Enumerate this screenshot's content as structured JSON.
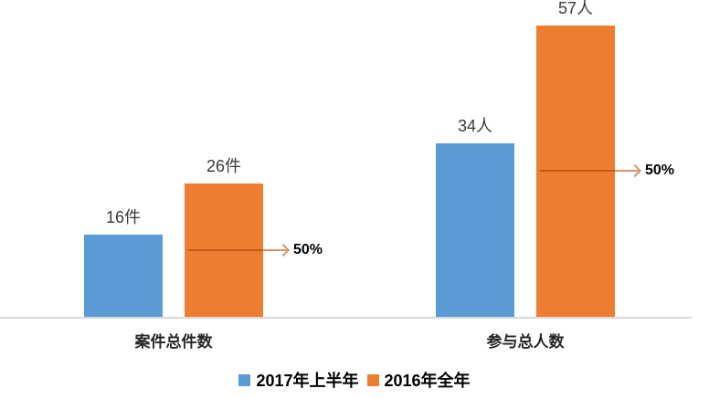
{
  "chart_data": {
    "type": "bar",
    "title": "",
    "xlabel": "",
    "ylabel": "",
    "categories": [
      "案件总件数",
      "参与总人数"
    ],
    "series": [
      {
        "name": "2017年上半年",
        "color": "#5B9BD5",
        "values": [
          16,
          34
        ],
        "data_labels": [
          "16件",
          "34人"
        ]
      },
      {
        "name": "2016年全年",
        "color": "#ED7D31",
        "values": [
          26,
          57
        ],
        "data_labels": [
          "26件",
          "57人"
        ]
      }
    ],
    "ylim": [
      0,
      62
    ],
    "grid": false,
    "y_axis_visible": false,
    "legend_position": "bottom",
    "annotations": [
      {
        "category": "案件总件数",
        "series": "2016年全年",
        "at_fraction_of_bar": 0.5,
        "label": "50%"
      },
      {
        "category": "参与总人数",
        "series": "2016年全年",
        "at_fraction_of_bar": 0.5,
        "label": "50%"
      }
    ]
  },
  "colors": {
    "axis_line": "#D9D9D9",
    "annotation_line_on_bar": "#C05A11",
    "annotation_arrow": "#D9956B",
    "data_label_text": "#3A3A3A",
    "category_label_text": "#262626",
    "legend_text": "#000000",
    "annotation_text": "#000000"
  }
}
